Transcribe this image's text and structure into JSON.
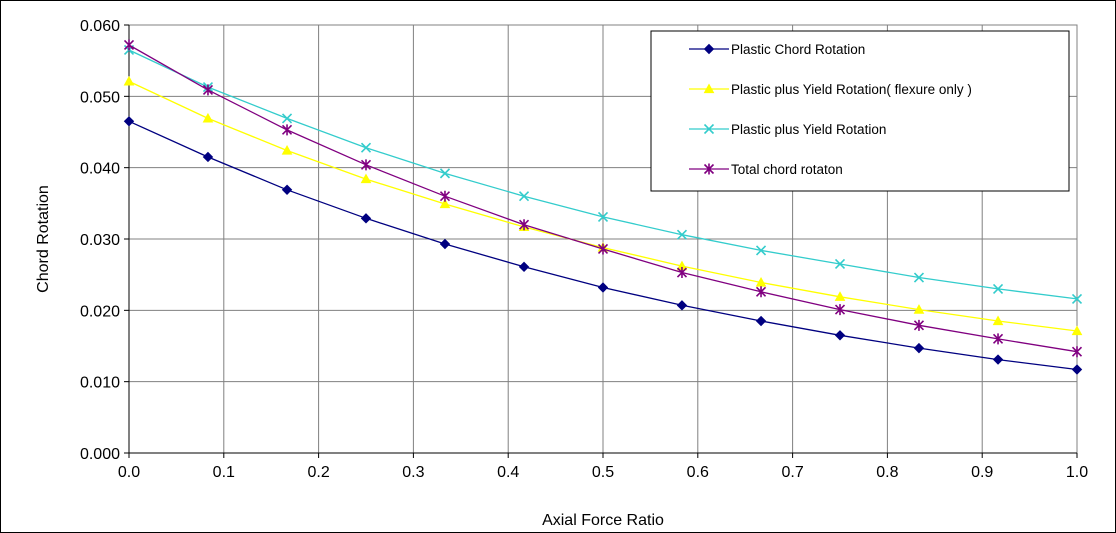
{
  "chart_data": {
    "type": "line",
    "title": "",
    "xlabel": "Axial Force Ratio",
    "ylabel": "Chord Rotation",
    "xlim": [
      0,
      1
    ],
    "ylim": [
      0,
      0.06
    ],
    "x_ticks": [
      "0.0",
      "0.1",
      "0.2",
      "0.3",
      "0.4",
      "0.5",
      "0.6",
      "0.7",
      "0.8",
      "0.9",
      "1.0"
    ],
    "y_ticks": [
      "0.000",
      "0.010",
      "0.020",
      "0.030",
      "0.040",
      "0.050",
      "0.060"
    ],
    "grid": true,
    "legend_position": "top-right",
    "x": [
      0,
      0.0833,
      0.1667,
      0.25,
      0.3333,
      0.4167,
      0.5,
      0.5833,
      0.6667,
      0.75,
      0.8333,
      0.9167,
      1.0
    ],
    "series": [
      {
        "name": "Plastic Chord Rotation",
        "color": "#000080",
        "marker": "diamond",
        "values": [
          0.0465,
          0.0415,
          0.0369,
          0.0329,
          0.0293,
          0.0261,
          0.0232,
          0.0207,
          0.0185,
          0.0165,
          0.0147,
          0.0131,
          0.0117
        ]
      },
      {
        "name": "Plastic plus Yield Rotation( flexure only )",
        "color": "#FFFF00",
        "marker": "triangle",
        "values": [
          0.0521,
          0.0469,
          0.0424,
          0.0384,
          0.0349,
          0.0317,
          0.0288,
          0.0262,
          0.0239,
          0.0219,
          0.0201,
          0.0185,
          0.0171
        ]
      },
      {
        "name": "Plastic plus Yield Rotation",
        "color": "#33CCCC",
        "marker": "x",
        "values": [
          0.0565,
          0.0513,
          0.0469,
          0.0428,
          0.0392,
          0.036,
          0.0331,
          0.0306,
          0.0284,
          0.0265,
          0.0246,
          0.023,
          0.0216
        ]
      },
      {
        "name": "Total chord rotaton",
        "color": "#800080",
        "marker": "star",
        "values": [
          0.0572,
          0.0509,
          0.0453,
          0.0404,
          0.036,
          0.032,
          0.0286,
          0.0253,
          0.0226,
          0.0201,
          0.0179,
          0.016,
          0.0142
        ]
      }
    ]
  }
}
